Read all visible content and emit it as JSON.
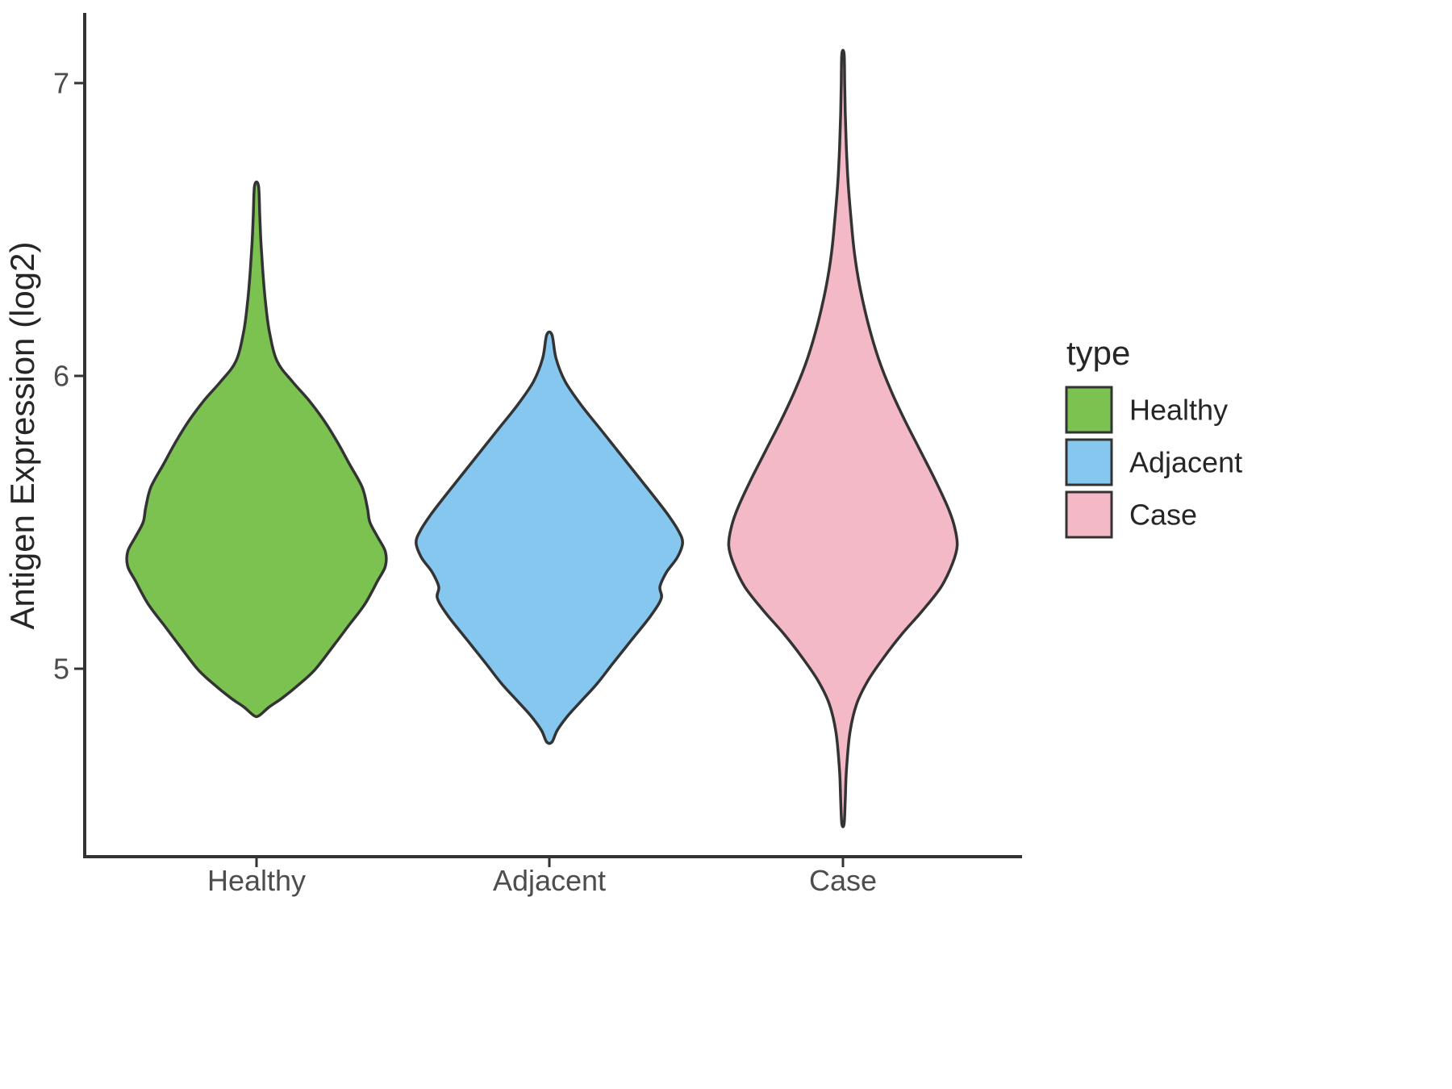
{
  "chart_data": {
    "type": "violin",
    "title": "",
    "xlabel": "",
    "ylabel": "Antigen Expression (log2)",
    "categories": [
      "Healthy",
      "Adjacent",
      "Case"
    ],
    "yticks": [
      5,
      6,
      7
    ],
    "ylim": [
      4.3,
      7.25
    ],
    "grid": false,
    "stroke_color": "#333333",
    "legend": {
      "title": "type",
      "position": "right",
      "entries": [
        "Healthy",
        "Adjacent",
        "Case"
      ]
    },
    "series": [
      {
        "name": "Healthy",
        "color": "#7CC250",
        "range": [
          4.84,
          6.65
        ],
        "peak_value": 5.38,
        "halfwidth_frac": 0.44,
        "profile": [
          [
            6.65,
            0.015
          ],
          [
            6.55,
            0.025
          ],
          [
            6.45,
            0.035
          ],
          [
            6.35,
            0.05
          ],
          [
            6.25,
            0.07
          ],
          [
            6.15,
            0.1
          ],
          [
            6.05,
            0.16
          ],
          [
            5.98,
            0.28
          ],
          [
            5.92,
            0.4
          ],
          [
            5.85,
            0.52
          ],
          [
            5.78,
            0.62
          ],
          [
            5.7,
            0.72
          ],
          [
            5.62,
            0.82
          ],
          [
            5.55,
            0.86
          ],
          [
            5.5,
            0.88
          ],
          [
            5.45,
            0.94
          ],
          [
            5.4,
            1.0
          ],
          [
            5.35,
            1.0
          ],
          [
            5.3,
            0.94
          ],
          [
            5.22,
            0.84
          ],
          [
            5.15,
            0.72
          ],
          [
            5.08,
            0.6
          ],
          [
            5.0,
            0.46
          ],
          [
            4.95,
            0.34
          ],
          [
            4.9,
            0.2
          ],
          [
            4.87,
            0.1
          ],
          [
            4.84,
            0.02
          ]
        ]
      },
      {
        "name": "Adjacent",
        "color": "#86C7F0",
        "range": [
          4.75,
          6.14
        ],
        "peak_value": 5.43,
        "halfwidth_frac": 0.455,
        "profile": [
          [
            6.14,
            0.02
          ],
          [
            6.06,
            0.05
          ],
          [
            5.98,
            0.12
          ],
          [
            5.9,
            0.24
          ],
          [
            5.82,
            0.38
          ],
          [
            5.74,
            0.52
          ],
          [
            5.66,
            0.66
          ],
          [
            5.58,
            0.8
          ],
          [
            5.52,
            0.9
          ],
          [
            5.47,
            0.97
          ],
          [
            5.43,
            1.0
          ],
          [
            5.38,
            0.96
          ],
          [
            5.33,
            0.88
          ],
          [
            5.28,
            0.83
          ],
          [
            5.24,
            0.84
          ],
          [
            5.18,
            0.76
          ],
          [
            5.1,
            0.62
          ],
          [
            5.02,
            0.48
          ],
          [
            4.95,
            0.36
          ],
          [
            4.89,
            0.24
          ],
          [
            4.84,
            0.14
          ],
          [
            4.79,
            0.06
          ],
          [
            4.75,
            0.02
          ]
        ]
      },
      {
        "name": "Case",
        "color": "#F4B9C6",
        "range": [
          4.47,
          7.1
        ],
        "peak_value": 5.42,
        "halfwidth_frac": 0.39,
        "profile": [
          [
            7.1,
            0.01
          ],
          [
            7.0,
            0.015
          ],
          [
            6.9,
            0.02
          ],
          [
            6.78,
            0.03
          ],
          [
            6.66,
            0.045
          ],
          [
            6.54,
            0.07
          ],
          [
            6.42,
            0.1
          ],
          [
            6.3,
            0.15
          ],
          [
            6.18,
            0.22
          ],
          [
            6.06,
            0.31
          ],
          [
            5.95,
            0.42
          ],
          [
            5.85,
            0.54
          ],
          [
            5.75,
            0.67
          ],
          [
            5.65,
            0.8
          ],
          [
            5.55,
            0.92
          ],
          [
            5.48,
            0.98
          ],
          [
            5.42,
            1.0
          ],
          [
            5.36,
            0.96
          ],
          [
            5.28,
            0.86
          ],
          [
            5.2,
            0.7
          ],
          [
            5.12,
            0.52
          ],
          [
            5.04,
            0.36
          ],
          [
            4.96,
            0.22
          ],
          [
            4.88,
            0.12
          ],
          [
            4.78,
            0.06
          ],
          [
            4.65,
            0.03
          ],
          [
            4.55,
            0.02
          ],
          [
            4.47,
            0.01
          ]
        ]
      }
    ]
  }
}
